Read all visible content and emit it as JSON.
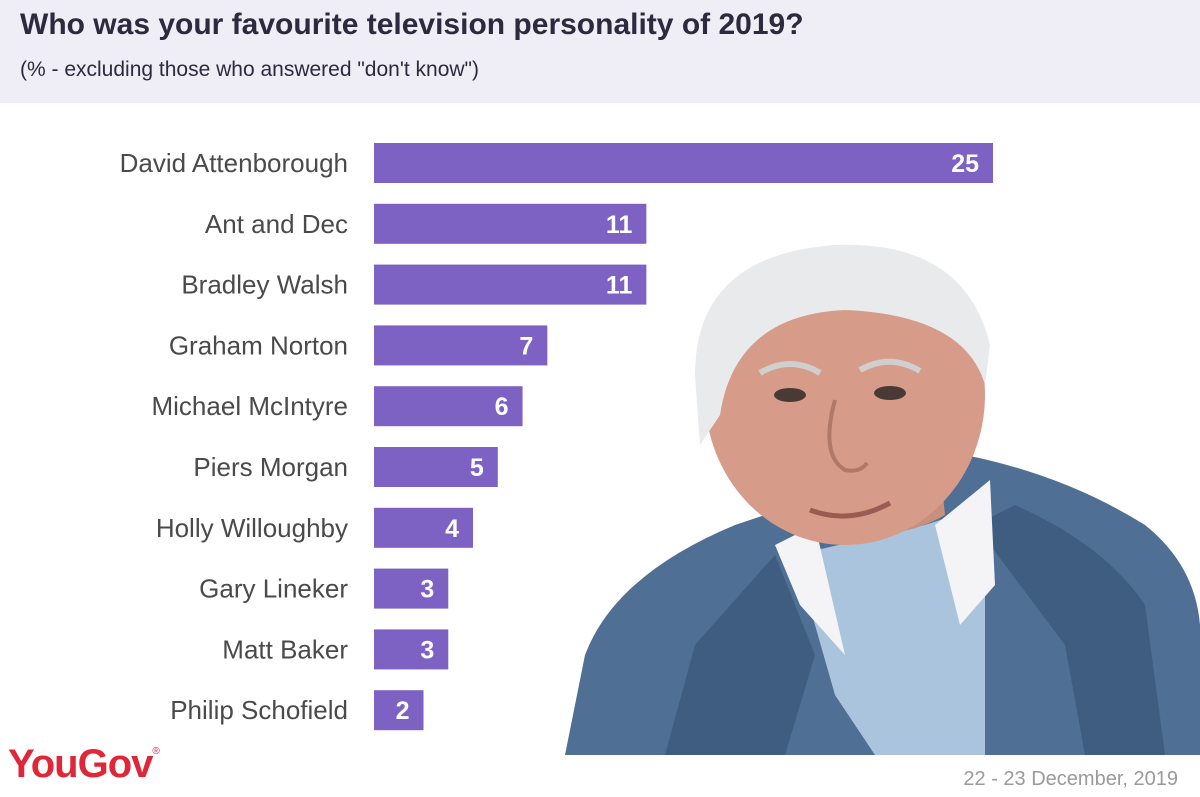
{
  "header": {
    "title": "Who was your favourite television personality of 2019?",
    "subtitle": "(% - excluding those who answered \"don't know\")"
  },
  "footer": {
    "logo": "YouGov",
    "date": "22 - 23 December, 2019"
  },
  "colors": {
    "bar": "#7d62c4",
    "bar_label": "#ffffff",
    "category_label": "#4a4a4a",
    "header_bg": "#efedf5",
    "logo": "#e0273a"
  },
  "chart_data": {
    "type": "bar",
    "orientation": "horizontal",
    "categories": [
      "David Attenborough",
      "Ant and Dec",
      "Bradley Walsh",
      "Graham Norton",
      "Michael McIntyre",
      "Piers Morgan",
      "Holly Willoughby",
      "Gary Lineker",
      "Matt Baker",
      "Philip Schofield"
    ],
    "values": [
      25,
      11,
      11,
      7,
      6,
      5,
      4,
      3,
      3,
      2
    ],
    "xlim": [
      0,
      25
    ],
    "grid": false,
    "data_labels": true
  }
}
